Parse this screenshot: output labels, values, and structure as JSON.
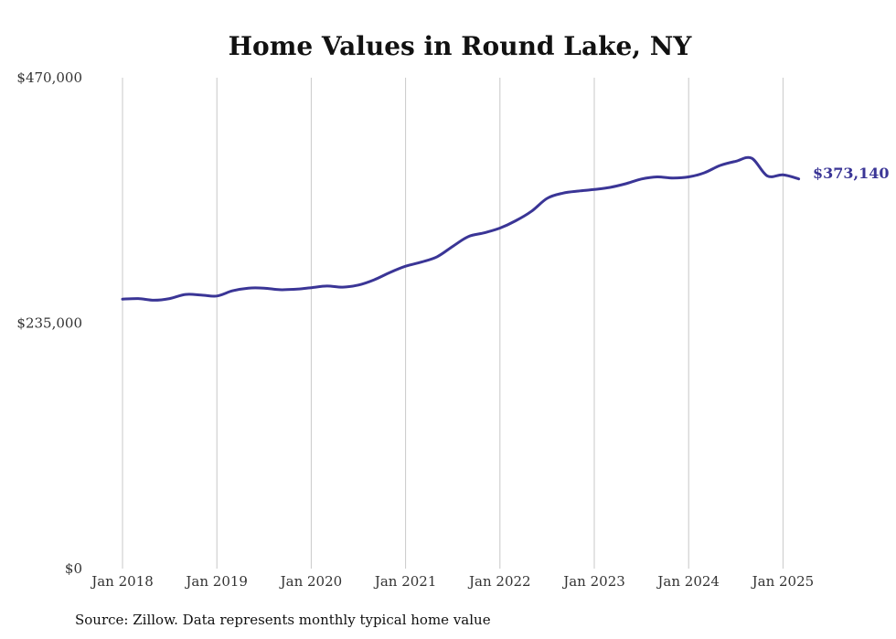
{
  "chart_data": {
    "type": "line",
    "title": "Home Values in Round Lake, NY",
    "ylim": [
      0,
      470000
    ],
    "y_ticks": [
      {
        "value": 0,
        "label": "$0"
      },
      {
        "value": 235000,
        "label": "$235,000"
      },
      {
        "value": 470000,
        "label": "$470,000"
      }
    ],
    "x_ticks": [
      "Jan 2018",
      "Jan 2019",
      "Jan 2020",
      "Jan 2021",
      "Jan 2022",
      "Jan 2023",
      "Jan 2024",
      "Jan 2025"
    ],
    "grid": "vertical",
    "series": [
      {
        "color": "#3a3596",
        "x": [
          "2018-01",
          "2018-03",
          "2018-05",
          "2018-07",
          "2018-09",
          "2018-11",
          "2019-01",
          "2019-03",
          "2019-05",
          "2019-07",
          "2019-09",
          "2019-11",
          "2020-01",
          "2020-03",
          "2020-05",
          "2020-07",
          "2020-09",
          "2020-11",
          "2021-01",
          "2021-03",
          "2021-05",
          "2021-07",
          "2021-09",
          "2021-11",
          "2022-01",
          "2022-03",
          "2022-05",
          "2022-07",
          "2022-09",
          "2022-11",
          "2023-01",
          "2023-03",
          "2023-05",
          "2023-07",
          "2023-09",
          "2023-11",
          "2024-01",
          "2024-03",
          "2024-05",
          "2024-07",
          "2024-09",
          "2024-11",
          "2025-01",
          "2025-03"
        ],
        "values": [
          258000,
          258500,
          257000,
          258500,
          262500,
          262000,
          261000,
          266000,
          268500,
          268500,
          267000,
          267500,
          269000,
          270500,
          269500,
          271500,
          276500,
          283500,
          289500,
          293500,
          298500,
          308500,
          318000,
          321500,
          326000,
          333000,
          342000,
          354500,
          359500,
          361500,
          363000,
          365000,
          368500,
          373000,
          375000,
          374000,
          375000,
          379000,
          386000,
          390000,
          393000,
          376000,
          377000,
          373140
        ]
      }
    ],
    "end_label": "$373,140"
  },
  "source": "Source: Zillow. Data represents monthly typical home value"
}
